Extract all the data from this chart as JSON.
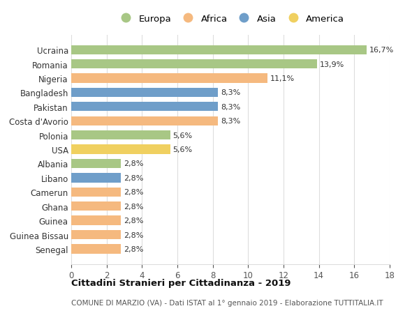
{
  "countries": [
    "Ucraina",
    "Romania",
    "Nigeria",
    "Bangladesh",
    "Pakistan",
    "Costa d'Avorio",
    "Polonia",
    "USA",
    "Albania",
    "Libano",
    "Camerun",
    "Ghana",
    "Guinea",
    "Guinea Bissau",
    "Senegal"
  ],
  "values": [
    16.7,
    13.9,
    11.1,
    8.3,
    8.3,
    8.3,
    5.6,
    5.6,
    2.8,
    2.8,
    2.8,
    2.8,
    2.8,
    2.8,
    2.8
  ],
  "labels": [
    "16,7%",
    "13,9%",
    "11,1%",
    "8,3%",
    "8,3%",
    "8,3%",
    "5,6%",
    "5,6%",
    "2,8%",
    "2,8%",
    "2,8%",
    "2,8%",
    "2,8%",
    "2,8%",
    "2,8%"
  ],
  "continents": [
    "Europa",
    "Europa",
    "Africa",
    "Asia",
    "Asia",
    "Africa",
    "Europa",
    "America",
    "Europa",
    "Asia",
    "Africa",
    "Africa",
    "Africa",
    "Africa",
    "Africa"
  ],
  "continent_colors": {
    "Europa": "#a8c785",
    "Africa": "#f5b97f",
    "Asia": "#6f9ec9",
    "America": "#f0d060"
  },
  "legend_order": [
    "Europa",
    "Africa",
    "Asia",
    "America"
  ],
  "title": "Cittadini Stranieri per Cittadinanza - 2019",
  "subtitle": "COMUNE DI MARZIO (VA) - Dati ISTAT al 1° gennaio 2019 - Elaborazione TUTTITALIA.IT",
  "xlim": [
    0,
    18
  ],
  "xticks": [
    0,
    2,
    4,
    6,
    8,
    10,
    12,
    14,
    16,
    18
  ],
  "background_color": "#ffffff",
  "grid_color": "#dddddd"
}
